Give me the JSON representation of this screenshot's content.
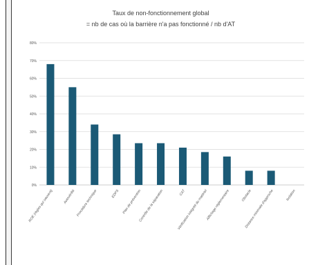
{
  "chart_data": {
    "type": "bar",
    "title": "Taux de non-fonctionnement global",
    "subtitle": "= nb de cas où la barrière n'a pas fonctionné / nb d'AT",
    "categories": [
      "ROE (règles qui sauvent)",
      "Autovérifié",
      "Procédure technique",
      "EDPS",
      "Plan de prévention",
      "Contrôle de la séparation",
      "CAT",
      "Vérification intégrité du matériel",
      "Affichage réglementaire",
      "Obstacle",
      "Distance minimale d'approche",
      "Isolation"
    ],
    "values": [
      68,
      55,
      34,
      28.5,
      23.5,
      23.5,
      21,
      18.5,
      16,
      8,
      8,
      0
    ],
    "yticks": [
      "0%",
      "10%",
      "20%",
      "30%",
      "40%",
      "50%",
      "60%",
      "70%",
      "80%"
    ],
    "ylim": [
      0,
      80
    ],
    "bar_color": "#1b5a76",
    "grid": true
  }
}
